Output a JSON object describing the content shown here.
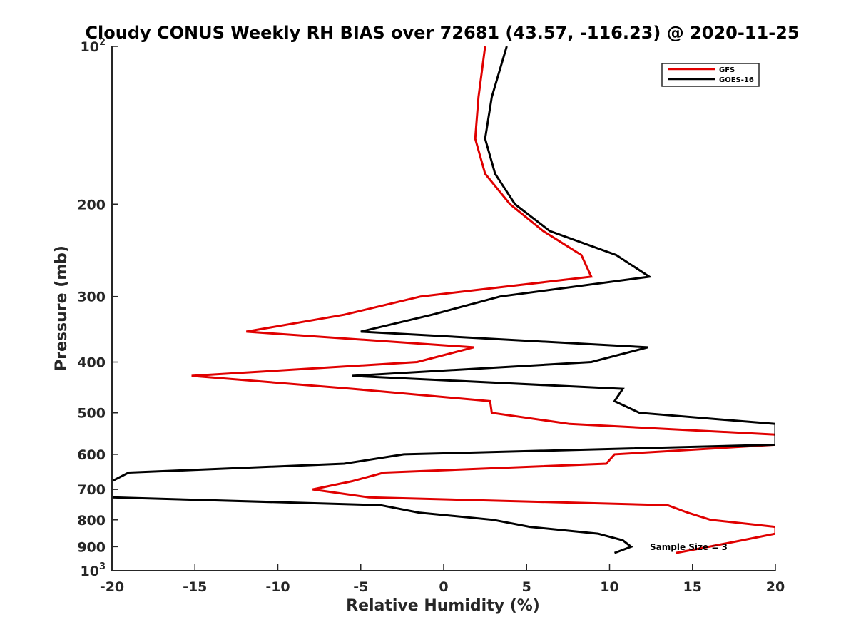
{
  "chart_data": {
    "type": "line",
    "title": "Cloudy CONUS Weekly RH BIAS over 72681 (43.57, -116.23) @ 2020-11-25",
    "xlabel": "Relative Humidity (%)",
    "ylabel": "Pressure (mb)",
    "xlim": [
      -20,
      20
    ],
    "ylim": [
      100,
      1000
    ],
    "y_scale": "log",
    "y_reversed": true,
    "x_ticks": [
      -20,
      -15,
      -10,
      -5,
      0,
      5,
      10,
      15,
      20
    ],
    "x_tick_labels": [
      "-20",
      "-15",
      "-10",
      "-5",
      "0",
      "5",
      "10",
      "15",
      "20"
    ],
    "y_ticks": [
      100,
      200,
      300,
      400,
      500,
      600,
      700,
      800,
      900,
      1000
    ],
    "y_tick_labels": [
      {
        "base": "10",
        "sup": "2"
      },
      {
        "base": "200",
        "sup": ""
      },
      {
        "base": "300",
        "sup": ""
      },
      {
        "base": "400",
        "sup": ""
      },
      {
        "base": "500",
        "sup": ""
      },
      {
        "base": "600",
        "sup": ""
      },
      {
        "base": "700",
        "sup": ""
      },
      {
        "base": "800",
        "sup": ""
      },
      {
        "base": "900",
        "sup": ""
      },
      {
        "base": "10",
        "sup": "3"
      }
    ],
    "grid": false,
    "legend_position": "top-right",
    "annotation": "Sample Size = 3",
    "series": [
      {
        "name": "GFS",
        "color": "#e00000",
        "points": [
          [
            2.5,
            100
          ],
          [
            2.1,
            125
          ],
          [
            1.9,
            150
          ],
          [
            2.5,
            175
          ],
          [
            4.0,
            200
          ],
          [
            6.0,
            225
          ],
          [
            8.3,
            250
          ],
          [
            8.9,
            275
          ],
          [
            -1.4,
            300
          ],
          [
            -6.0,
            325
          ],
          [
            -11.9,
            350
          ],
          [
            1.8,
            375
          ],
          [
            -1.6,
            400
          ],
          [
            -15.2,
            425
          ],
          [
            -5.5,
            450
          ],
          [
            2.8,
            475
          ],
          [
            2.9,
            500
          ],
          [
            7.6,
            525
          ],
          [
            20.0,
            550
          ],
          [
            20.0,
            575
          ],
          [
            10.3,
            600
          ],
          [
            9.8,
            625
          ],
          [
            -3.6,
            650
          ],
          [
            -5.5,
            675
          ],
          [
            -7.9,
            700
          ],
          [
            -4.5,
            725
          ],
          [
            13.5,
            750
          ],
          [
            14.7,
            775
          ],
          [
            16.1,
            800
          ],
          [
            20.0,
            825
          ],
          [
            20.0,
            850
          ],
          [
            18.0,
            875
          ],
          [
            16.0,
            900
          ],
          [
            14.0,
            925
          ]
        ]
      },
      {
        "name": "GOES-16",
        "color": "#000000",
        "points": [
          [
            3.8,
            100
          ],
          [
            2.9,
            125
          ],
          [
            2.5,
            150
          ],
          [
            3.1,
            175
          ],
          [
            4.3,
            200
          ],
          [
            6.4,
            225
          ],
          [
            10.4,
            250
          ],
          [
            12.4,
            275
          ],
          [
            3.4,
            300
          ],
          [
            -0.7,
            325
          ],
          [
            -5.0,
            350
          ],
          [
            12.3,
            375
          ],
          [
            8.9,
            400
          ],
          [
            -5.5,
            425
          ],
          [
            10.8,
            450
          ],
          [
            10.3,
            475
          ],
          [
            11.8,
            500
          ],
          [
            20.0,
            525
          ],
          [
            20.0,
            550
          ],
          [
            20.0,
            575
          ],
          [
            -2.4,
            600
          ],
          [
            -6.0,
            625
          ],
          [
            -19.0,
            650
          ],
          [
            -20.0,
            675
          ],
          [
            -20.0,
            700
          ],
          [
            -20.0,
            725
          ],
          [
            -3.8,
            750
          ],
          [
            -1.5,
            775
          ],
          [
            3.0,
            800
          ],
          [
            5.2,
            825
          ],
          [
            9.3,
            850
          ],
          [
            10.8,
            875
          ],
          [
            11.3,
            900
          ],
          [
            10.3,
            925
          ]
        ]
      }
    ]
  }
}
